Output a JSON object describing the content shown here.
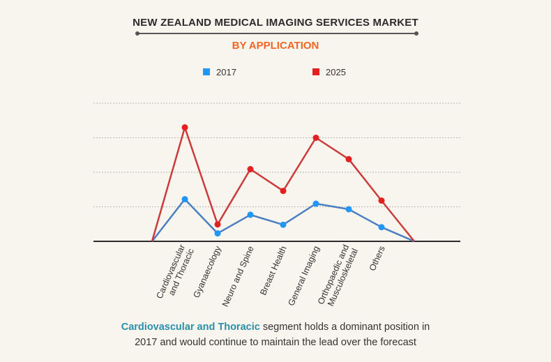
{
  "title": "NEW ZEALAND MEDICAL IMAGING SERVICES MARKET",
  "subtitle": "BY APPLICATION",
  "legend": [
    {
      "label": "2017",
      "color": "#2196f3"
    },
    {
      "label": "2025",
      "color": "#e41f1f"
    }
  ],
  "chart_data": {
    "type": "line",
    "title": "NEW ZEALAND MEDICAL IMAGING SERVICES MARKET",
    "subtitle": "BY APPLICATION",
    "categories": [
      "",
      "Cardiovascular and Thoracic",
      "Gyanaecology",
      "Neuro and Spine",
      "Breast Health",
      "General Imaging",
      "Orthopaedic and Musculoskeletal",
      "Others",
      ""
    ],
    "tick_labels": [
      [
        "Cardiovascular",
        "and Thoracic"
      ],
      [
        "Gyanaecology"
      ],
      [
        "Neuro and Spine"
      ],
      [
        "Breast Health"
      ],
      [
        "General Imaging"
      ],
      [
        "Orthopaedic and",
        "Musculoskeletal"
      ],
      [
        "Others"
      ]
    ],
    "series": [
      {
        "name": "2017",
        "line_color": "#4a7fc1",
        "marker_color": "#2196f3",
        "values": [
          0,
          1.22,
          0.23,
          0.77,
          0.48,
          1.09,
          0.93,
          0.41,
          0
        ]
      },
      {
        "name": "2025",
        "line_color": "#cc3b3b",
        "marker_color": "#e41f1f",
        "values": [
          0,
          3.3,
          0.49,
          2.09,
          1.46,
          3.0,
          2.38,
          1.18,
          0
        ]
      }
    ],
    "ylim": [
      0,
      4
    ],
    "grid": true,
    "legend_position": "top",
    "xlabel": "",
    "ylabel": ""
  },
  "caption": {
    "highlight": "Cardiovascular and Thoracic",
    "line1_rest": " segment holds a dominant position in",
    "line2": "2017 and would continue to maintain the lead over the forecast"
  }
}
